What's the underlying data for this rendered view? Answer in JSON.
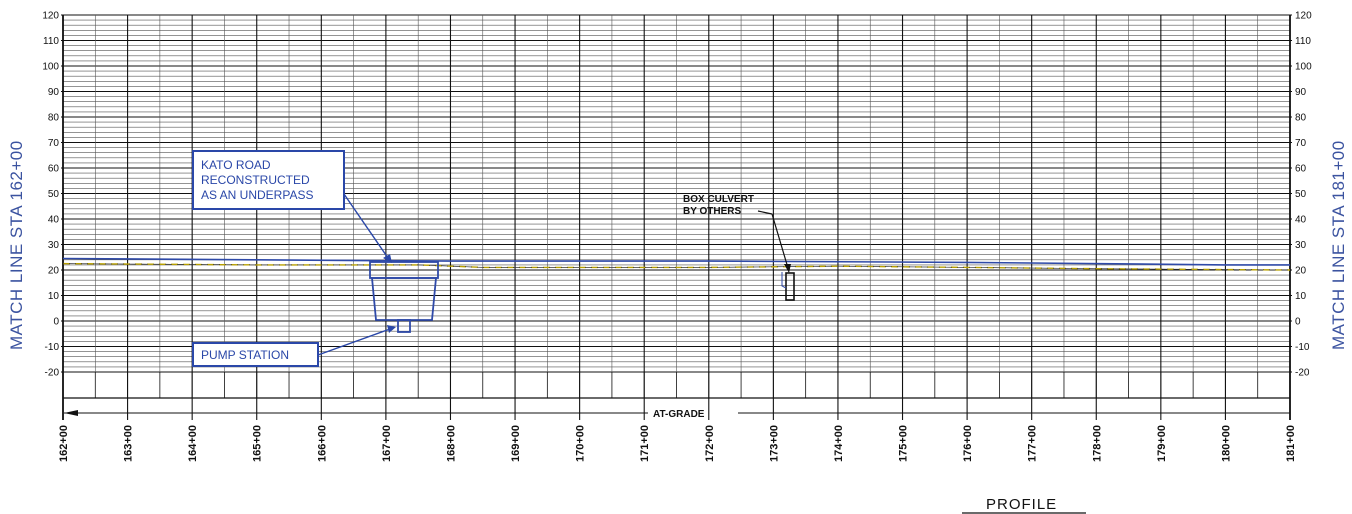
{
  "match_lines": {
    "left": "MATCH LINE STA 162+00",
    "right": "MATCH LINE STA 181+00"
  },
  "callouts": {
    "kato_road": [
      "KATO ROAD",
      "RECONSTRUCTED",
      "AS AN UNDERPASS"
    ],
    "pump_station": "PUMP STATION",
    "box_culvert": [
      "BOX CULVERT",
      "BY OTHERS"
    ]
  },
  "at_grade_label": "AT-GRADE",
  "profile_title": "PROFILE",
  "colors": {
    "ground_line": "#2f4aa8",
    "proposed_grade": "#b8a000",
    "callout": "#2a47a8",
    "grid": "#333333"
  },
  "chart_data": {
    "type": "line",
    "elevation_ticks": [
      120,
      110,
      100,
      90,
      80,
      70,
      60,
      50,
      40,
      30,
      20,
      10,
      0,
      -10,
      -20
    ],
    "ylim": [
      -20,
      120
    ],
    "station_labels": [
      "162+00",
      "163+00",
      "164+00",
      "165+00",
      "166+00",
      "167+00",
      "168+00",
      "169+00",
      "170+00",
      "171+00",
      "172+00",
      "173+00",
      "174+00",
      "175+00",
      "176+00",
      "177+00",
      "178+00",
      "179+00",
      "180+00",
      "181+00"
    ],
    "xlim": [
      162,
      181
    ],
    "series": [
      {
        "x": [
          162,
          165,
          168,
          172,
          176,
          180,
          181
        ],
        "y": [
          24.5,
          24,
          23.5,
          23.5,
          23,
          22,
          22
        ]
      },
      {
        "x": [
          162,
          165,
          167.5,
          168.5,
          172,
          174,
          176,
          178,
          181
        ],
        "y": [
          22.5,
          22,
          22,
          21,
          21,
          21.5,
          21,
          20.5,
          20
        ]
      }
    ],
    "structures": {
      "underpass_stations": [
        166.8,
        167.85
      ],
      "underpass_elevations": [
        1,
        24
      ],
      "box_culvert_station": 173.28,
      "box_culvert_elevations": [
        10,
        19
      ]
    }
  }
}
